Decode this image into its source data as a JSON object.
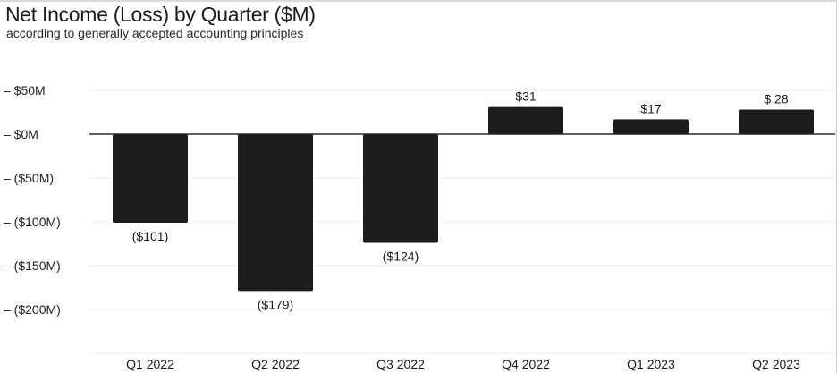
{
  "chart_data": {
    "type": "bar",
    "title": "Net Income (Loss) by Quarter ($M)",
    "subtitle": "according to generally accepted accounting principles",
    "xlabel": "",
    "ylabel": "",
    "categories": [
      "Q1 2022",
      "Q2 2022",
      "Q3 2022",
      "Q4 2022",
      "Q1 2023",
      "Q2 2023"
    ],
    "values": [
      -101,
      -179,
      -124,
      31,
      17,
      28
    ],
    "data_labels": [
      "($101)",
      "($179)",
      "($124)",
      "$31",
      "$17",
      "$ 28"
    ],
    "y_ticks": [
      50,
      0,
      -50,
      -100,
      -150,
      -200
    ],
    "y_tick_labels": [
      "– $50M",
      "– $0M",
      "– ($50M)",
      "– ($100M)",
      "– ($150M)",
      "– ($200M)"
    ],
    "ylim": [
      -250,
      50
    ],
    "grid": true,
    "legend": "none",
    "colors": {
      "bar": "#1d1d1f",
      "grid": "#ececf0",
      "zero_line": "#2b2b2b",
      "text": "#1b1b1b"
    }
  }
}
